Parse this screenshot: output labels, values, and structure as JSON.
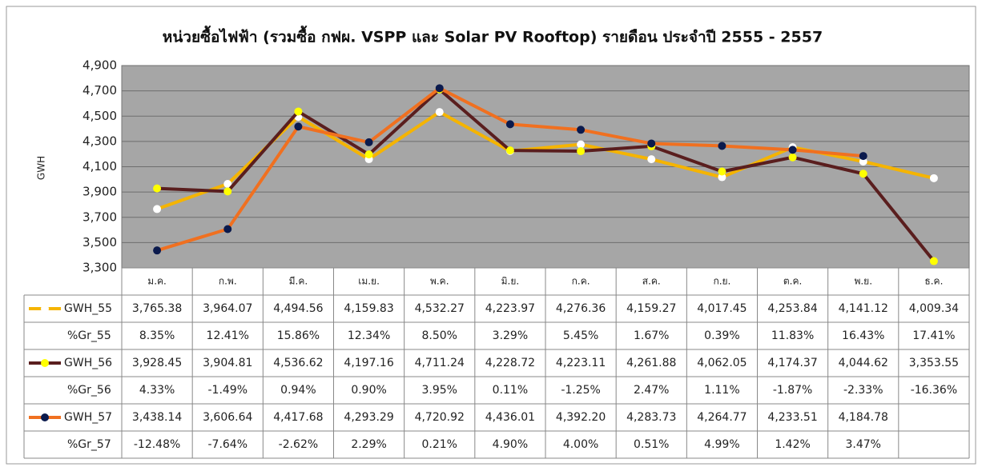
{
  "chart_data": {
    "type": "line",
    "title": "หน่วยซื้อไฟฟ้า (รวมซื้อ กฟผ. VSPP และ Solar PV Rooftop) รายดือน ประจำปี 2555 - 2557",
    "ylabel": "GWH",
    "categories": [
      "ม.ค.",
      "ก.พ.",
      "มี.ค.",
      "เม.ย.",
      "พ.ค.",
      "มิ.ย.",
      "ก.ค.",
      "ส.ค.",
      "ก.ย.",
      "ต.ค.",
      "พ.ย.",
      "ธ.ค."
    ],
    "ylim": [
      3300,
      4900
    ],
    "yticks": [
      {
        "value": 3300,
        "label": "3,300"
      },
      {
        "value": 3500,
        "label": "3,500"
      },
      {
        "value": 3700,
        "label": "3,700"
      },
      {
        "value": 3900,
        "label": "3,900"
      },
      {
        "value": 4100,
        "label": "4,100"
      },
      {
        "value": 4300,
        "label": "4,300"
      },
      {
        "value": 4500,
        "label": "4,500"
      },
      {
        "value": 4700,
        "label": "4,700"
      },
      {
        "value": 4900,
        "label": "4,900"
      }
    ],
    "grid": true,
    "plot_background": "#a6a6a6",
    "series": [
      {
        "name": "GWH_55",
        "color": "#f5b400",
        "marker_color": "#ffffff",
        "values": [
          3765.38,
          3964.07,
          4494.56,
          4159.83,
          4532.27,
          4223.97,
          4276.36,
          4159.27,
          4017.45,
          4253.84,
          4141.12,
          4009.34
        ],
        "value_labels": [
          "3,765.38",
          "3,964.07",
          "4,494.56",
          "4,159.83",
          "4,532.27",
          "4,223.97",
          "4,276.36",
          "4,159.27",
          "4,017.45",
          "4,253.84",
          "4,141.12",
          "4,009.34"
        ]
      },
      {
        "name": "GWH_56",
        "color": "#5a1e1e",
        "marker_color": "#ffff00",
        "values": [
          3928.45,
          3904.81,
          4536.62,
          4197.16,
          4711.24,
          4228.72,
          4223.11,
          4261.88,
          4062.05,
          4174.37,
          4044.62,
          3353.55
        ],
        "value_labels": [
          "3,928.45",
          "3,904.81",
          "4,536.62",
          "4,197.16",
          "4,711.24",
          "4,228.72",
          "4,223.11",
          "4,261.88",
          "4,062.05",
          "4,174.37",
          "4,044.62",
          "3,353.55"
        ]
      },
      {
        "name": "GWH_57",
        "color": "#f07020",
        "marker_color": "#0b1a4d",
        "values": [
          3438.14,
          3606.64,
          4417.68,
          4293.29,
          4720.92,
          4436.01,
          4392.2,
          4283.73,
          4264.77,
          4233.51,
          4184.78,
          null
        ],
        "value_labels": [
          "3,438.14",
          "3,606.64",
          "4,417.68",
          "4,293.29",
          "4,720.92",
          "4,436.01",
          "4,392.20",
          "4,283.73",
          "4,264.77",
          "4,233.51",
          "4,184.78",
          null
        ]
      }
    ],
    "growth": [
      {
        "name": "%Gr_55",
        "labels": [
          "8.35%",
          "12.41%",
          "15.86%",
          "12.34%",
          "8.50%",
          "3.29%",
          "5.45%",
          "1.67%",
          "0.39%",
          "11.83%",
          "16.43%",
          "17.41%"
        ]
      },
      {
        "name": "%Gr_56",
        "labels": [
          "4.33%",
          "-1.49%",
          "0.94%",
          "0.90%",
          "3.95%",
          "0.11%",
          "-1.25%",
          "2.47%",
          "1.11%",
          "-1.87%",
          "-2.33%",
          "-16.36%"
        ]
      },
      {
        "name": "%Gr_57",
        "labels": [
          "-12.48%",
          "-7.64%",
          "-2.62%",
          "2.29%",
          "0.21%",
          "4.90%",
          "4.00%",
          "0.51%",
          "4.99%",
          "1.42%",
          "3.47%",
          null
        ]
      }
    ]
  }
}
